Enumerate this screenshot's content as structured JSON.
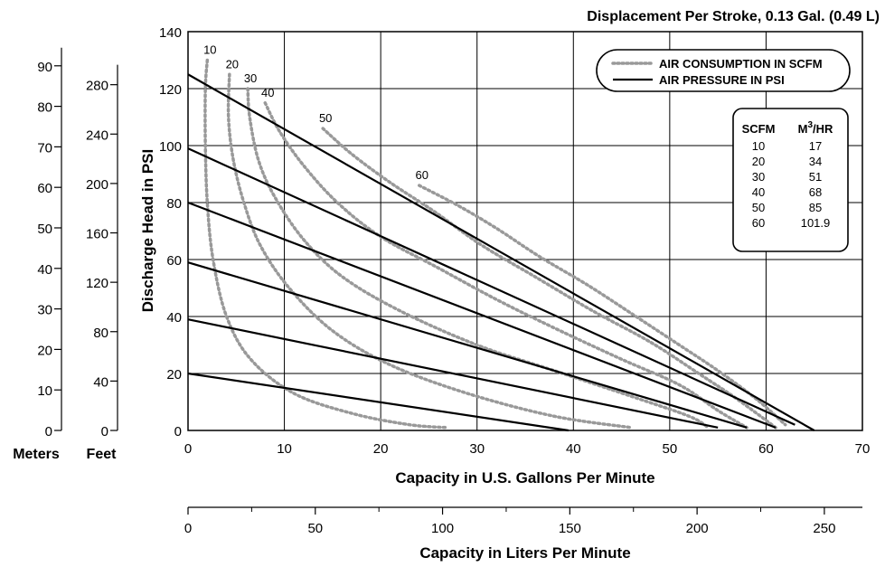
{
  "chart_data": {
    "type": "line",
    "title": "Displacement Per Stroke, 0.13 Gal. (0.49 L)",
    "xlabel": "Capacity in U.S. Gallons Per Minute",
    "ylabel": "Discharge Head in PSI",
    "xlim": [
      0,
      70
    ],
    "ylim": [
      0,
      140
    ],
    "grid": true,
    "x_ticks": [
      "0",
      "10",
      "20",
      "30",
      "40",
      "50",
      "60",
      "70"
    ],
    "y_ticks": [
      "0",
      "20",
      "40",
      "60",
      "80",
      "100",
      "120",
      "140"
    ],
    "secondary_x_axis": {
      "label": "Capacity in Liters Per Minute",
      "ticks": [
        {
          "label": "0",
          "value": 0
        },
        {
          "label": "50",
          "value": 50
        },
        {
          "label": "100",
          "value": 100
        },
        {
          "label": "150",
          "value": 150
        },
        {
          "label": "200",
          "value": 200
        },
        {
          "label": "250",
          "value": 250
        }
      ],
      "unit_per_primary": 3.785
    },
    "feet_axis": {
      "label": "Feet",
      "ticks": [
        {
          "label": "0",
          "value": 0
        },
        {
          "label": "40",
          "value": 40
        },
        {
          "label": "80",
          "value": 80
        },
        {
          "label": "120",
          "value": 120
        },
        {
          "label": "160",
          "value": 160
        },
        {
          "label": "200",
          "value": 200
        },
        {
          "label": "240",
          "value": 240
        },
        {
          "label": "280",
          "value": 280
        }
      ],
      "psi_per_unit": 0.4335
    },
    "meters_axis": {
      "label": "Meters",
      "ticks": [
        {
          "label": "0",
          "value": 0
        },
        {
          "label": "10",
          "value": 10
        },
        {
          "label": "20",
          "value": 20
        },
        {
          "label": "30",
          "value": 30
        },
        {
          "label": "40",
          "value": 40
        },
        {
          "label": "50",
          "value": 50
        },
        {
          "label": "60",
          "value": 60
        },
        {
          "label": "70",
          "value": 70
        },
        {
          "label": "80",
          "value": 80
        },
        {
          "label": "90",
          "value": 90
        }
      ],
      "psi_per_unit": 1.4223
    },
    "legend": {
      "position": "top-right",
      "entries": [
        {
          "label": "AIR CONSUMPTION IN SCFM",
          "style": "dotted",
          "color": "#999999"
        },
        {
          "label": "AIR PRESSURE IN PSI",
          "style": "solid",
          "color": "#000000"
        }
      ]
    },
    "conversion_table": {
      "headers": [
        "SCFM",
        "M3/HR"
      ],
      "header_base": "M",
      "header_sup": "3",
      "header_rest": "/HR",
      "rows": [
        [
          "10",
          "17"
        ],
        [
          "20",
          "34"
        ],
        [
          "30",
          "51"
        ],
        [
          "40",
          "68"
        ],
        [
          "50",
          "85"
        ],
        [
          "60",
          "101.9"
        ]
      ]
    },
    "pressure_lines": [
      {
        "points": [
          [
            0,
            20
          ],
          [
            39.5,
            0
          ]
        ]
      },
      {
        "points": [
          [
            0,
            39
          ],
          [
            55,
            1
          ]
        ]
      },
      {
        "points": [
          [
            0,
            59
          ],
          [
            58,
            1
          ]
        ]
      },
      {
        "points": [
          [
            0,
            80
          ],
          [
            61,
            1
          ]
        ]
      },
      {
        "points": [
          [
            0,
            99
          ],
          [
            63,
            2
          ]
        ]
      },
      {
        "points": [
          [
            0,
            125
          ],
          [
            65,
            0
          ]
        ]
      }
    ],
    "scfm_curves": [
      {
        "label": "10",
        "points": [
          [
            2,
            130
          ],
          [
            1.8,
            120
          ],
          [
            1.8,
            100
          ],
          [
            2,
            80
          ],
          [
            2.6,
            60
          ],
          [
            4,
            40
          ],
          [
            6.5,
            25
          ],
          [
            11,
            13
          ],
          [
            17,
            6
          ],
          [
            23,
            2
          ],
          [
            27,
            1
          ]
        ]
      },
      {
        "label": "20",
        "points": [
          [
            4.3,
            125
          ],
          [
            4.2,
            110
          ],
          [
            4.7,
            95
          ],
          [
            5.8,
            80
          ],
          [
            7.5,
            65
          ],
          [
            10.5,
            50
          ],
          [
            15,
            35
          ],
          [
            21,
            23
          ],
          [
            29,
            13
          ],
          [
            38,
            5
          ],
          [
            46,
            1
          ]
        ]
      },
      {
        "label": "30",
        "points": [
          [
            6.2,
            120
          ],
          [
            6.4,
            110
          ],
          [
            7.3,
            95
          ],
          [
            9,
            82
          ],
          [
            12,
            67
          ],
          [
            16,
            54
          ],
          [
            22,
            42
          ],
          [
            30,
            30
          ],
          [
            38,
            21
          ],
          [
            46,
            12
          ],
          [
            52,
            5
          ],
          [
            54,
            1
          ]
        ]
      },
      {
        "label": "40",
        "points": [
          [
            8,
            115
          ],
          [
            9.5,
            105
          ],
          [
            12,
            93
          ],
          [
            15.5,
            80
          ],
          [
            20,
            68
          ],
          [
            26,
            57
          ],
          [
            32,
            46
          ],
          [
            38,
            36
          ],
          [
            45,
            25
          ],
          [
            51,
            16
          ],
          [
            55,
            7
          ],
          [
            58,
            1
          ]
        ]
      },
      {
        "label": "50",
        "points": [
          [
            14,
            106
          ],
          [
            17,
            97
          ],
          [
            21,
            87
          ],
          [
            25.5,
            77
          ],
          [
            30.5,
            65
          ],
          [
            36,
            54
          ],
          [
            42,
            42
          ],
          [
            48,
            31
          ],
          [
            53,
            20
          ],
          [
            57,
            11
          ],
          [
            61,
            1
          ]
        ]
      },
      {
        "label": "60",
        "points": [
          [
            24,
            86
          ],
          [
            28,
            79
          ],
          [
            32,
            71
          ],
          [
            36.5,
            61
          ],
          [
            41.5,
            51
          ],
          [
            46.5,
            40
          ],
          [
            51,
            30
          ],
          [
            55,
            21
          ],
          [
            59,
            11
          ],
          [
            62,
            2
          ]
        ]
      }
    ]
  }
}
